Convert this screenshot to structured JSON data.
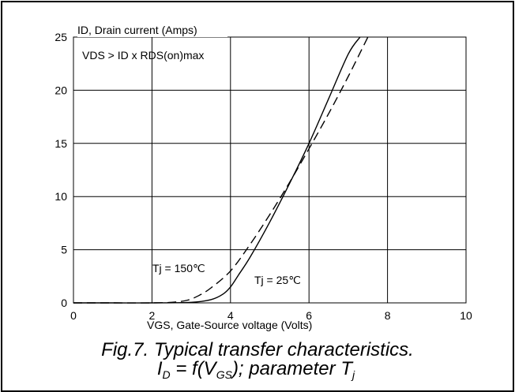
{
  "chart_data": {
    "type": "line",
    "xlabel": "VGS, Gate-Source voltage (Volts)",
    "ylabel": "ID, Drain current (Amps)",
    "xlim": [
      0,
      10
    ],
    "ylim": [
      0,
      25
    ],
    "xticks": [
      0,
      2,
      4,
      6,
      8,
      10
    ],
    "yticks": [
      0,
      5,
      10,
      15,
      20,
      25
    ],
    "grid": true,
    "annotations": [
      "VDS > ID x RDS(on)max"
    ],
    "series": [
      {
        "name": "Tj = 25℃",
        "style": "solid",
        "x": [
          0,
          1,
          2,
          3,
          3.5,
          3.8,
          4.0,
          4.2,
          4.5,
          5.0,
          5.5,
          6.0,
          6.5,
          7.0,
          7.3
        ],
        "y": [
          0,
          0,
          0,
          0.05,
          0.3,
          0.8,
          1.5,
          2.6,
          4.3,
          7.6,
          11.2,
          15.0,
          19.2,
          23.4,
          25
        ]
      },
      {
        "name": "Tj = 150℃",
        "style": "dashed",
        "x": [
          0,
          1,
          2,
          2.5,
          2.9,
          3.2,
          3.5,
          4.0,
          4.5,
          5.0,
          5.5,
          6.0,
          6.5,
          7.0,
          7.5
        ],
        "y": [
          0,
          0,
          0,
          0.05,
          0.25,
          0.7,
          1.4,
          3.0,
          5.5,
          8.3,
          11.3,
          14.5,
          17.8,
          21.3,
          25
        ]
      }
    ]
  },
  "caption": {
    "line1": "Fig.7.  Typical transfer characteristics.",
    "line2_pre": "I",
    "line2_sub1": "D",
    "line2_mid": " = f(V",
    "line2_sub2": "GS",
    "line2_post": "); parameter T",
    "line2_sub3": "j"
  }
}
